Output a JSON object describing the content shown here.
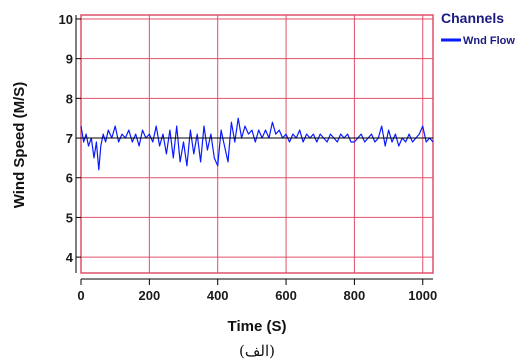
{
  "colors": {
    "grid": "#e0506a",
    "series": "#0a1aff",
    "reference_line": "#000000",
    "frame": "#e0506a"
  },
  "chart_data": {
    "type": "line",
    "title": "",
    "xlabel": "Time (S)",
    "ylabel": "Wind Speed (M/S)",
    "xlim": [
      0,
      1030
    ],
    "ylim": [
      3.6,
      10.1
    ],
    "x_ticks": [
      0,
      200,
      400,
      600,
      800,
      1000
    ],
    "y_ticks": [
      4,
      5,
      6,
      7,
      8,
      9,
      10
    ],
    "grid": true,
    "legend": {
      "title": "Channels",
      "placement": "top-right",
      "entries": [
        "Wnd Flow"
      ]
    },
    "reference_line": {
      "y": 7.0
    },
    "series": [
      {
        "name": "Wnd Flow",
        "x": [
          0,
          8,
          15,
          22,
          30,
          38,
          45,
          52,
          58,
          65,
          72,
          80,
          90,
          100,
          110,
          120,
          130,
          140,
          150,
          160,
          170,
          180,
          190,
          200,
          210,
          220,
          230,
          240,
          250,
          260,
          270,
          280,
          290,
          300,
          310,
          320,
          330,
          340,
          350,
          360,
          370,
          380,
          390,
          400,
          410,
          420,
          430,
          440,
          450,
          460,
          470,
          480,
          490,
          500,
          510,
          520,
          530,
          540,
          550,
          560,
          570,
          580,
          590,
          600,
          610,
          620,
          630,
          640,
          650,
          660,
          670,
          680,
          690,
          700,
          710,
          720,
          730,
          740,
          750,
          760,
          770,
          780,
          790,
          800,
          810,
          820,
          830,
          840,
          850,
          860,
          870,
          880,
          890,
          900,
          910,
          920,
          930,
          940,
          950,
          960,
          970,
          980,
          990,
          1000,
          1010,
          1020,
          1030
        ],
        "values": [
          7.3,
          6.9,
          7.1,
          6.8,
          7.0,
          6.5,
          6.9,
          6.2,
          6.8,
          7.1,
          6.9,
          7.2,
          7.0,
          7.3,
          6.9,
          7.1,
          7.0,
          7.2,
          6.9,
          7.1,
          6.8,
          7.2,
          7.0,
          7.1,
          6.9,
          7.3,
          6.8,
          7.1,
          6.6,
          7.2,
          6.5,
          7.3,
          6.4,
          6.9,
          6.3,
          7.2,
          6.6,
          7.1,
          6.4,
          7.3,
          6.7,
          7.1,
          6.5,
          6.3,
          7.2,
          6.8,
          6.4,
          7.4,
          6.9,
          7.5,
          7.0,
          7.3,
          7.1,
          7.2,
          6.9,
          7.2,
          7.0,
          7.2,
          7.0,
          7.4,
          7.1,
          7.2,
          7.0,
          7.1,
          6.9,
          7.1,
          7.0,
          7.2,
          6.9,
          7.1,
          7.0,
          7.1,
          6.9,
          7.1,
          7.0,
          6.9,
          7.1,
          7.0,
          6.9,
          7.1,
          7.0,
          7.1,
          6.9,
          6.9,
          7.0,
          7.1,
          6.9,
          7.0,
          7.1,
          6.9,
          7.0,
          7.3,
          6.8,
          7.2,
          6.9,
          7.1,
          6.8,
          7.0,
          6.9,
          7.1,
          6.9,
          7.0,
          7.1,
          7.3,
          6.9,
          7.0,
          6.9
        ]
      }
    ]
  },
  "caption": "(الف)"
}
